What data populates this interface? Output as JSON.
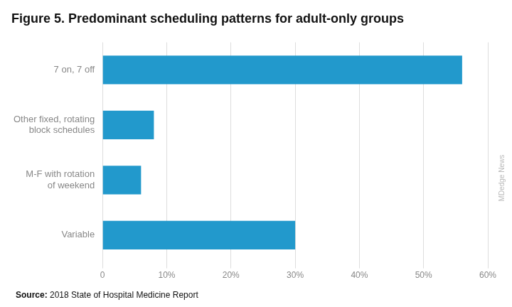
{
  "chart_data": {
    "type": "bar",
    "orientation": "horizontal",
    "title": "Figure 5. Predominant scheduling patterns for adult-only groups",
    "categories": [
      "Variable",
      "M-F with rotation\nof weekend",
      "Other fixed, rotating\nblock schedules",
      "7 on, 7 off"
    ],
    "values": [
      30,
      6,
      8,
      56
    ],
    "color": "#2299CC",
    "xlim": [
      0,
      60
    ],
    "xticks": [
      0,
      {
        "value": 10,
        "label": "10%"
      },
      {
        "value": 20,
        "label": "20%"
      },
      {
        "value": 30,
        "label": "30%"
      },
      {
        "value": 40,
        "label": "40%"
      },
      {
        "value": 50,
        "label": "50%"
      },
      {
        "value": 60,
        "label": "60%"
      }
    ],
    "grid": true,
    "legend": false,
    "annotations": [
      "Source: 2018 State of Hospital Medicine Report",
      "MDedge News"
    ]
  }
}
